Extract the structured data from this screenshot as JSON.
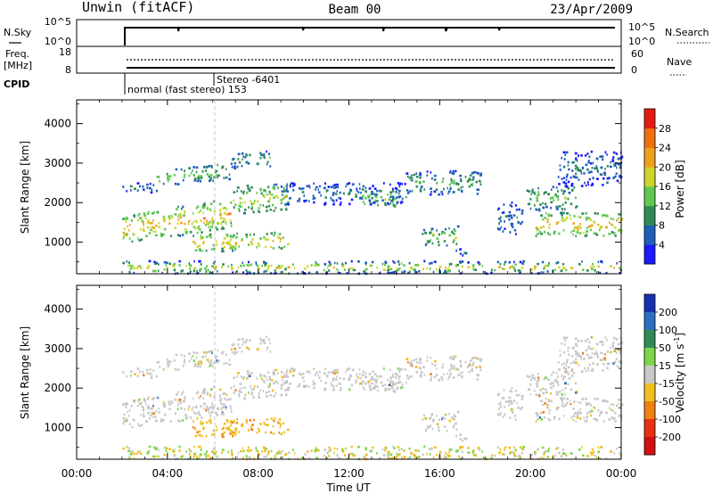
{
  "header": {
    "station": "Unwin (fitACF)",
    "beam": "Beam 00",
    "date": "23/Apr/2009"
  },
  "top_panels": {
    "nsky": {
      "left_label": "N.Sky",
      "left_ticks": [
        "10^5",
        "10^0"
      ],
      "right_label": "N.Search",
      "right_ticks": [
        "10^5",
        "10^0"
      ]
    },
    "freq": {
      "left_label_1": "Freq.",
      "left_label_2": "[MHz]",
      "left_ticks": [
        "18",
        "8"
      ],
      "right_label": "Nave",
      "right_ticks": [
        "60",
        "0"
      ]
    },
    "cpid": {
      "label": "CPID",
      "annotations": [
        "Stereo -6401",
        "normal (fast stereo) 153"
      ]
    }
  },
  "chart_data": [
    {
      "type": "heatmap",
      "name": "power",
      "ylabel": "Slant Range [km]",
      "yticks": [
        "1000",
        "2000",
        "3000",
        "4000"
      ],
      "ylim": [
        200,
        4600
      ],
      "colorbar_label": "Power [dB]",
      "colorbar_ticks": [
        "4",
        "8",
        "12",
        "16",
        "20",
        "24",
        "28"
      ],
      "colorbar_range": [
        0,
        32
      ],
      "colors": [
        "#1a1aff",
        "#1f5fb8",
        "#2e8b57",
        "#5fc94f",
        "#cfd42a",
        "#f0a020",
        "#f07010",
        "#e61a10"
      ]
    },
    {
      "type": "heatmap",
      "name": "velocity",
      "ylabel": "Slant Range [km]",
      "yticks": [
        "1000",
        "2000",
        "3000",
        "4000"
      ],
      "ylim": [
        200,
        4600
      ],
      "colorbar_label": "Velocity [m s",
      "colorbar_label_sup": "-1",
      "colorbar_label_end": "]",
      "colorbar_ticks": [
        "200",
        "100",
        "50",
        "15",
        "-15",
        "-50",
        "-100",
        "-200"
      ],
      "colors": [
        "#1a2fb0",
        "#2a6fc0",
        "#2e8b57",
        "#7cd64a",
        "#c8c8c8",
        "#f0c020",
        "#f08010",
        "#e83010",
        "#d01010"
      ]
    }
  ],
  "xaxis": {
    "label": "Time UT",
    "ticks": [
      "00:00",
      "04:00",
      "08:00",
      "12:00",
      "16:00",
      "20:00",
      "00:00"
    ],
    "range_hours": [
      0,
      24
    ]
  }
}
